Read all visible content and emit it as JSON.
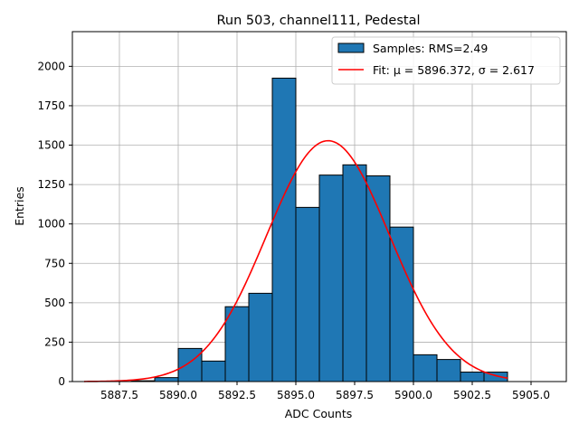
{
  "chart_data": {
    "type": "bar",
    "title": "Run 503, channel111, Pedestal",
    "xlabel": "ADC Counts",
    "ylabel": "Entries",
    "xlim": [
      5885.5,
      5906.5
    ],
    "ylim": [
      0,
      2220
    ],
    "xticks": [
      5887.5,
      5890.0,
      5892.5,
      5895.0,
      5897.5,
      5900.0,
      5902.5,
      5905.0
    ],
    "xtick_labels": [
      "5887.5",
      "5890.0",
      "5892.5",
      "5895.0",
      "5897.5",
      "5900.0",
      "5902.5",
      "5905.0"
    ],
    "yticks": [
      0,
      250,
      500,
      750,
      1000,
      1250,
      1500,
      1750,
      2000
    ],
    "ytick_labels": [
      "0",
      "250",
      "500",
      "750",
      "1000",
      "1250",
      "1500",
      "1750",
      "2000"
    ],
    "grid": true,
    "legend_position": "top-right",
    "bins": [
      {
        "left": 5888,
        "right": 5889,
        "count": 5
      },
      {
        "left": 5889,
        "right": 5890,
        "count": 25
      },
      {
        "left": 5890,
        "right": 5891,
        "count": 210
      },
      {
        "left": 5891,
        "right": 5892,
        "count": 130
      },
      {
        "left": 5892,
        "right": 5893,
        "count": 475
      },
      {
        "left": 5893,
        "right": 5894,
        "count": 560
      },
      {
        "left": 5894,
        "right": 5895,
        "count": 1925
      },
      {
        "left": 5895,
        "right": 5896,
        "count": 1105
      },
      {
        "left": 5896,
        "right": 5897,
        "count": 1310
      },
      {
        "left": 5897,
        "right": 5898,
        "count": 1375
      },
      {
        "left": 5898,
        "right": 5899,
        "count": 1305
      },
      {
        "left": 5899,
        "right": 5900,
        "count": 980
      },
      {
        "left": 5900,
        "right": 5901,
        "count": 170
      },
      {
        "left": 5901,
        "right": 5902,
        "count": 140
      },
      {
        "left": 5902,
        "right": 5903,
        "count": 60
      },
      {
        "left": 5903,
        "right": 5904,
        "count": 60
      }
    ],
    "fit": {
      "mu": 5896.372,
      "sigma": 2.617,
      "peak": 1528,
      "x_range": [
        5886,
        5904
      ]
    },
    "series": [
      {
        "name": "Samples: RMS=2.49",
        "color": "#1f77b4",
        "edge_color": "#000000"
      },
      {
        "name": "Fit: μ = 5896.372, σ = 2.617",
        "color": "#ff0000"
      }
    ]
  }
}
